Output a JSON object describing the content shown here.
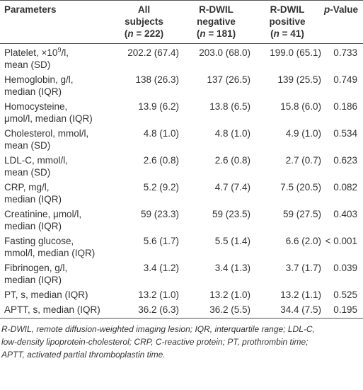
{
  "header": {
    "parameters": "Parameters",
    "columns": [
      {
        "lines": [
          "All",
          "subjects"
        ],
        "count": [
          "(",
          "n",
          " = 222)"
        ]
      },
      {
        "lines": [
          "R-DWIL",
          "negative"
        ],
        "count": [
          "(",
          "n",
          " = 181)"
        ]
      },
      {
        "lines": [
          "R-DWIL",
          "positive"
        ],
        "count": [
          "(",
          "n",
          " = 41)"
        ]
      }
    ],
    "p_value": [
      "p",
      "-Value"
    ]
  },
  "table": {
    "rows": [
      {
        "parameter": [
          [
            "Platelet, ×10",
            "9",
            "/l,"
          ],
          "mean (SD)"
        ],
        "values": [
          "202.2 (67.4)",
          "203.0 (68.0)",
          "199.0 (65.1)"
        ],
        "p": "0.733"
      },
      {
        "parameter": [
          "Hemoglobin, g/l,",
          "median (IQR)"
        ],
        "values": [
          "138 (26.3)",
          "137 (26.5)",
          "139 (25.5)"
        ],
        "p": "0.749"
      },
      {
        "parameter": [
          "Homocysteine,",
          "μmol/l, median (IQR)"
        ],
        "values": [
          "13.9 (6.2)",
          "13.8 (6.5)",
          "15.8 (6.0)"
        ],
        "p": "0.186"
      },
      {
        "parameter": [
          "Cholesterol, mmol/l,",
          "mean (SD)"
        ],
        "values": [
          "4.8 (1.0)",
          "4.8 (1.0)",
          "4.9 (1.0)"
        ],
        "p": "0.534"
      },
      {
        "parameter": [
          "LDL-C, mmol/l,",
          "mean (SD)"
        ],
        "values": [
          "2.6 (0.8)",
          "2.6 (0.8)",
          "2.7 (0.7)"
        ],
        "p": "0.623"
      },
      {
        "parameter": [
          "CRP, mg/l,",
          "median (IQR)"
        ],
        "values": [
          "5.2 (9.2)",
          "4.7 (7.4)",
          "7.5 (20.5)"
        ],
        "p": "0.082"
      },
      {
        "parameter": [
          "Creatinine, μmol/l,",
          "median (IQR)"
        ],
        "values": [
          "59 (23.3)",
          "59 (23.5)",
          "59 (27.5)"
        ],
        "p": "0.403"
      },
      {
        "parameter": [
          "Fasting glucose,",
          "mmol/l, median (IQR)"
        ],
        "values": [
          "5.6 (1.7)",
          "5.5 (1.4)",
          "6.6 (2.0)"
        ],
        "p": "< 0.001"
      },
      {
        "parameter": [
          "Fibrinogen, g/l,",
          "median (IQR)"
        ],
        "values": [
          "3.4 (1.2)",
          "3.4 (1.3)",
          "3.7 (1.7)"
        ],
        "p": "0.039"
      },
      {
        "parameter": [
          "PT, s, median (IQR)"
        ],
        "values": [
          "13.2 (1.0)",
          "13.2 (1.0)",
          "13.2 (1.1)"
        ],
        "p": "0.525"
      },
      {
        "parameter": [
          "APTT, s, median (IQR)"
        ],
        "values": [
          "36.2 (6.3)",
          "36.2 (5.5)",
          "34.4 (7.5)"
        ],
        "p": "0.195"
      }
    ]
  },
  "footnote": [
    "R-DWIL, remote diffusion-weighted imaging lesion; IQR, interquartile range; LDL-C,",
    "low-density lipoprotein-cholesterol; CRP, C-reactive protein; PT, prothrombin time;",
    "APTT, activated partial thromboplastin time."
  ]
}
